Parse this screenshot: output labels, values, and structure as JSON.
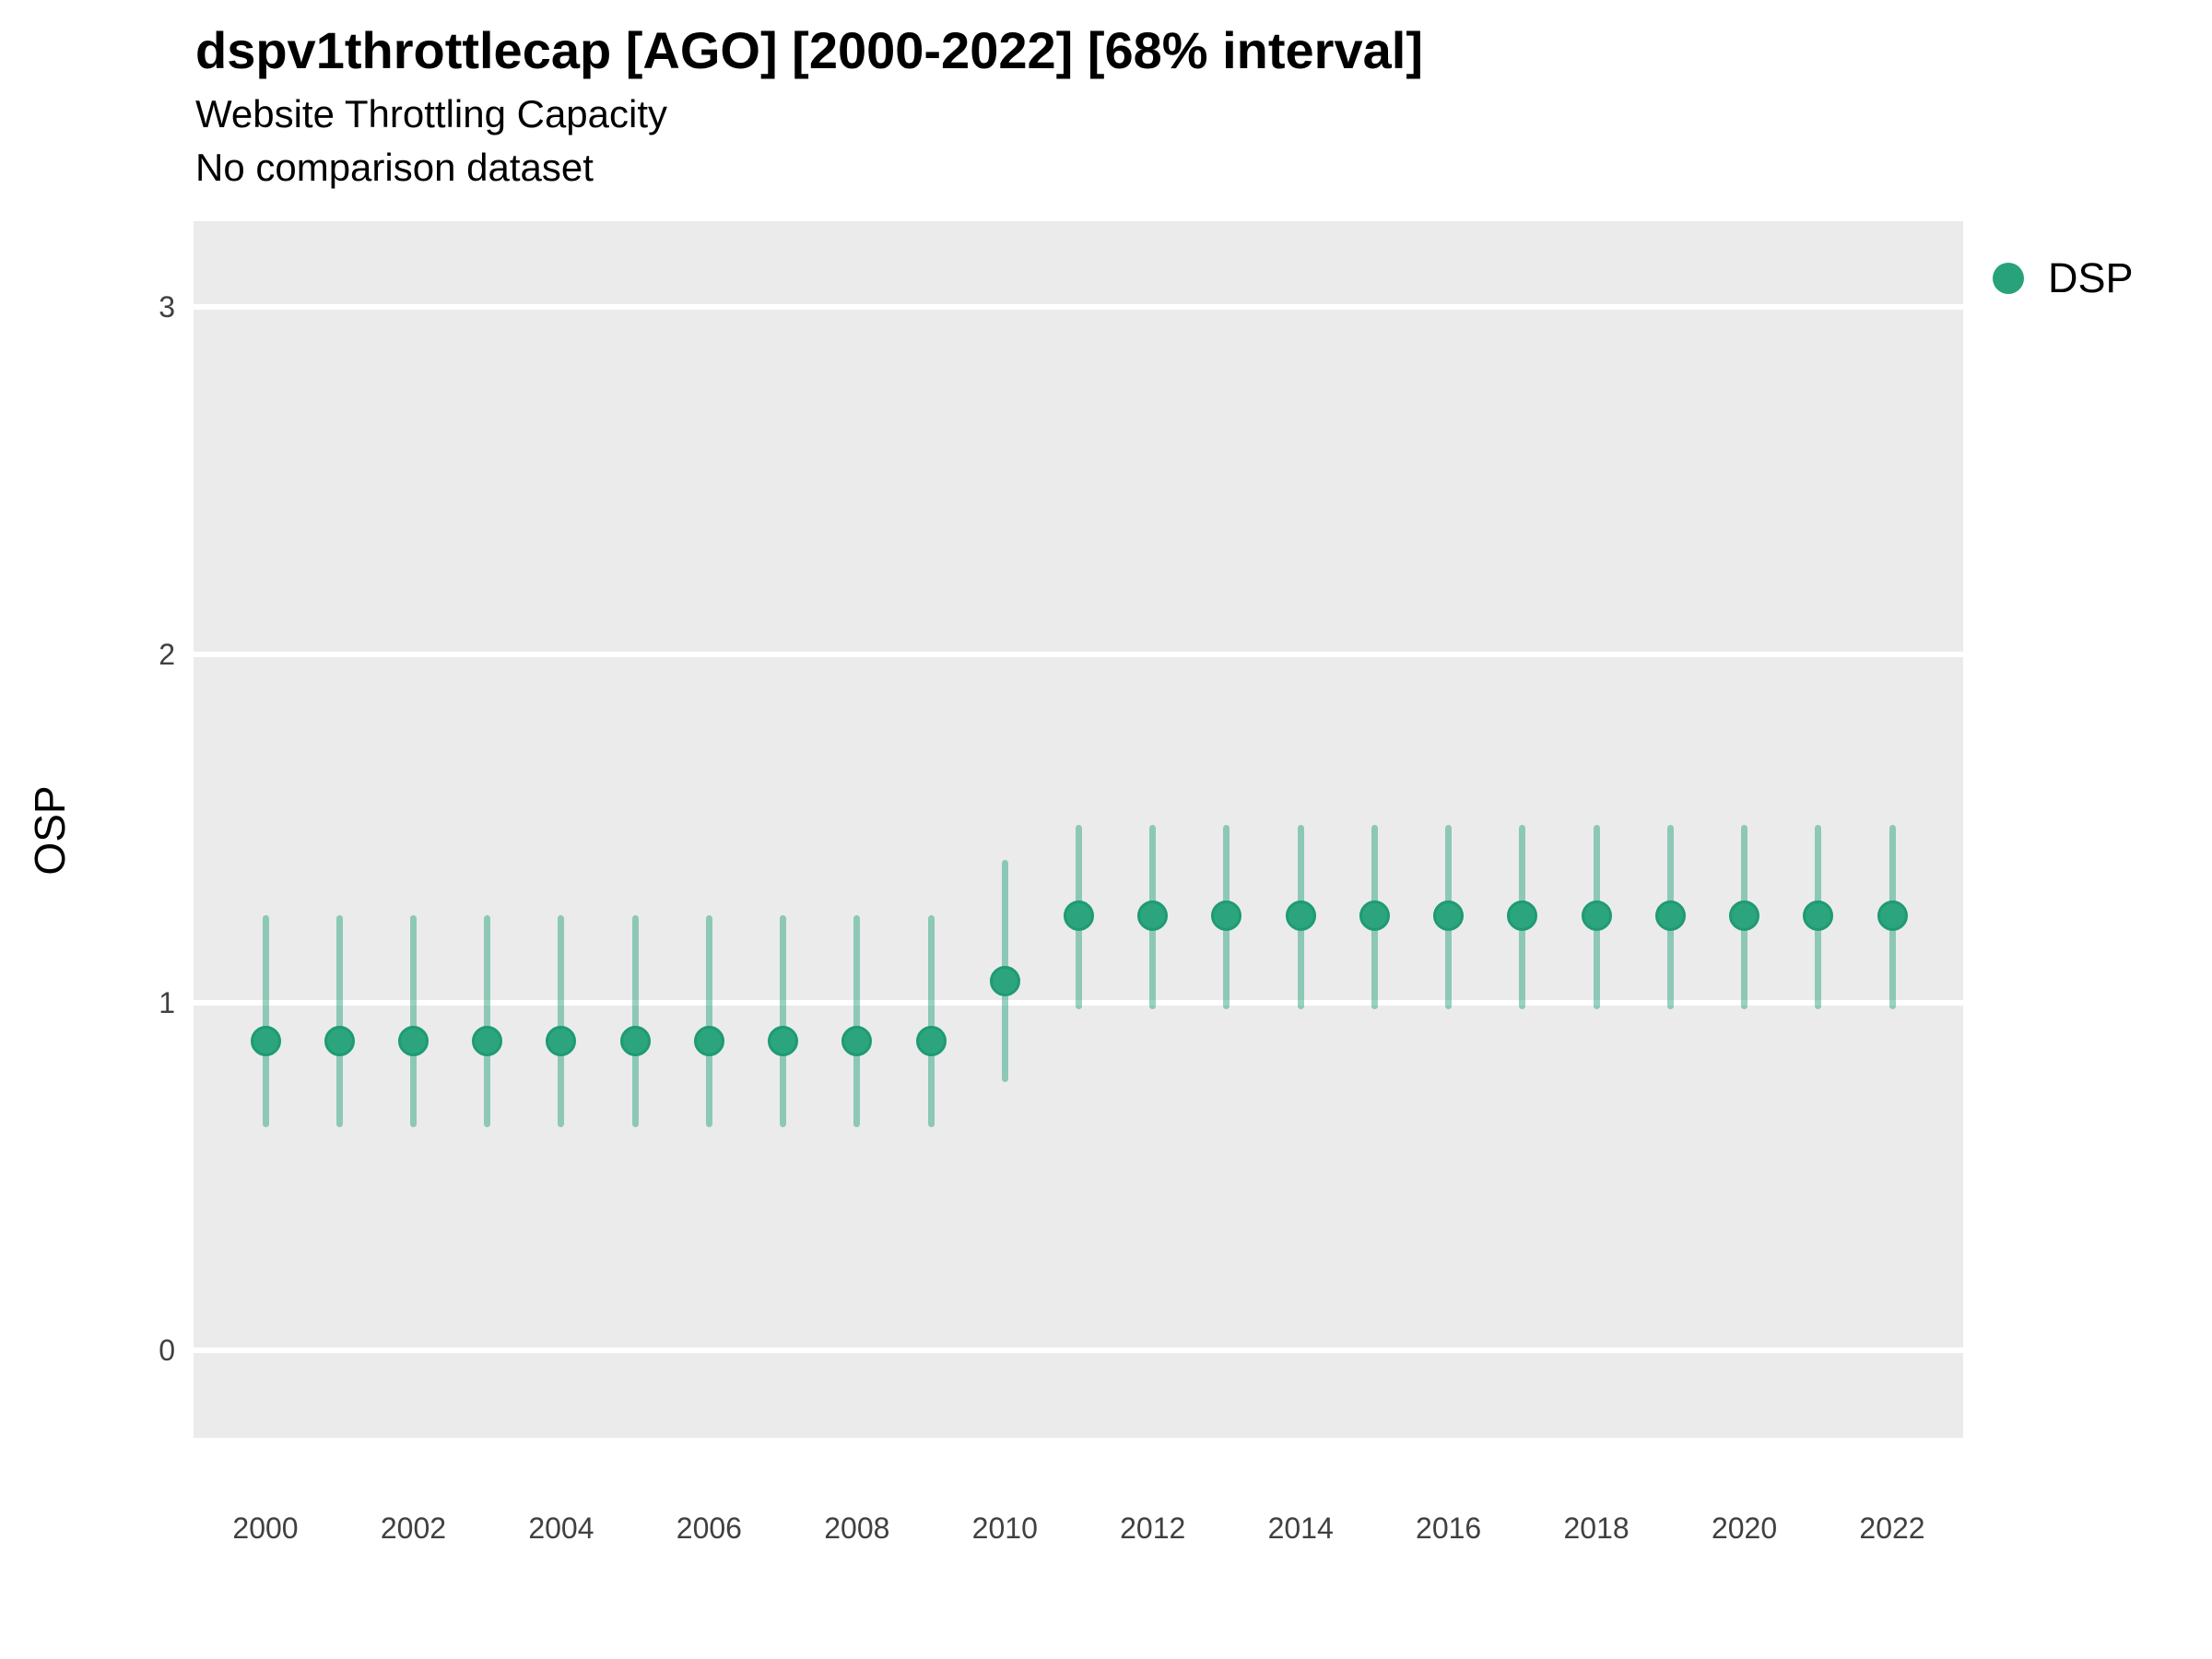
{
  "header": {
    "title": "dspv1throttlecap [AGO] [2000-2022] [68% interval]",
    "subtitle": "Website Throttling Capacity",
    "note": "No comparison dataset"
  },
  "legend": {
    "items": [
      {
        "label": "DSP",
        "color": "#27A27A"
      }
    ]
  },
  "colors": {
    "panel_background": "#EBEBEB",
    "gridline": "#FFFFFF",
    "point_fill": "#2CA57E",
    "point_border": "#1E9B72",
    "interval_bar": "rgba(27,158,119,0.45)",
    "tick_label": "#404040"
  },
  "chart_data": {
    "type": "scatter",
    "title": "dspv1throttlecap [AGO] [2000-2022] [68% interval]",
    "subtitle": "Website Throttling Capacity",
    "note": "No comparison dataset",
    "xlabel": "",
    "ylabel": "OSP",
    "interval": "68%",
    "ylim": [
      -0.25,
      3.25
    ],
    "yticks": [
      0,
      1,
      2,
      3
    ],
    "xticks": [
      2000,
      2002,
      2004,
      2006,
      2008,
      2010,
      2012,
      2014,
      2016,
      2018,
      2020,
      2022
    ],
    "grid": "horizontal-only",
    "legend_position": "right",
    "series": [
      {
        "name": "DSP",
        "color": "#1B9E77",
        "points": [
          {
            "year": 2000,
            "value": 0.89,
            "lo": 0.64,
            "hi": 1.25
          },
          {
            "year": 2001,
            "value": 0.89,
            "lo": 0.64,
            "hi": 1.25
          },
          {
            "year": 2002,
            "value": 0.89,
            "lo": 0.64,
            "hi": 1.25
          },
          {
            "year": 2003,
            "value": 0.89,
            "lo": 0.64,
            "hi": 1.25
          },
          {
            "year": 2004,
            "value": 0.89,
            "lo": 0.64,
            "hi": 1.25
          },
          {
            "year": 2005,
            "value": 0.89,
            "lo": 0.64,
            "hi": 1.25
          },
          {
            "year": 2006,
            "value": 0.89,
            "lo": 0.64,
            "hi": 1.25
          },
          {
            "year": 2007,
            "value": 0.89,
            "lo": 0.64,
            "hi": 1.25
          },
          {
            "year": 2008,
            "value": 0.89,
            "lo": 0.64,
            "hi": 1.25
          },
          {
            "year": 2009,
            "value": 0.89,
            "lo": 0.64,
            "hi": 1.25
          },
          {
            "year": 2010,
            "value": 1.06,
            "lo": 0.77,
            "hi": 1.41
          },
          {
            "year": 2011,
            "value": 1.25,
            "lo": 0.98,
            "hi": 1.51
          },
          {
            "year": 2012,
            "value": 1.25,
            "lo": 0.98,
            "hi": 1.51
          },
          {
            "year": 2013,
            "value": 1.25,
            "lo": 0.98,
            "hi": 1.51
          },
          {
            "year": 2014,
            "value": 1.25,
            "lo": 0.98,
            "hi": 1.51
          },
          {
            "year": 2015,
            "value": 1.25,
            "lo": 0.98,
            "hi": 1.51
          },
          {
            "year": 2016,
            "value": 1.25,
            "lo": 0.98,
            "hi": 1.51
          },
          {
            "year": 2017,
            "value": 1.25,
            "lo": 0.98,
            "hi": 1.51
          },
          {
            "year": 2018,
            "value": 1.25,
            "lo": 0.98,
            "hi": 1.51
          },
          {
            "year": 2019,
            "value": 1.25,
            "lo": 0.98,
            "hi": 1.51
          },
          {
            "year": 2020,
            "value": 1.25,
            "lo": 0.98,
            "hi": 1.51
          },
          {
            "year": 2021,
            "value": 1.25,
            "lo": 0.98,
            "hi": 1.51
          },
          {
            "year": 2022,
            "value": 1.25,
            "lo": 0.98,
            "hi": 1.51
          }
        ]
      }
    ]
  }
}
